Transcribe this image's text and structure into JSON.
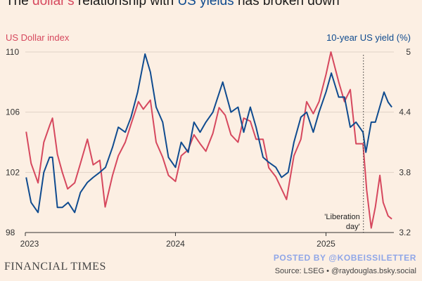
{
  "title": {
    "prefix": "The ",
    "dollar": "dollar's",
    "middle": " relationship with ",
    "yields": "US yields",
    "suffix": " has broken down"
  },
  "colors": {
    "dollar": "#d6485e",
    "yield": "#0f4b8f",
    "background": "#fcefe3"
  },
  "footer": {
    "publisher": "FINANCIAL TIMES",
    "watermark": "POSTED BY @KOBEISSILETTER",
    "source": "Source: LSEG • @raydouglas.bsky.social"
  },
  "chart_data": {
    "type": "line",
    "title": "",
    "left_axis": {
      "label": "US Dollar index",
      "ticks": [
        98,
        102,
        106,
        110
      ],
      "ylim": [
        98,
        110
      ]
    },
    "right_axis": {
      "label": "10-year US yield (%)",
      "ticks": [
        3.2,
        3.8,
        4.4,
        5
      ],
      "ylim": [
        3.2,
        5.0
      ]
    },
    "x_axis": {
      "ticks": [
        "2023",
        "2024",
        "2025"
      ],
      "xlim": [
        "2023-01-01",
        "2025-06-15"
      ]
    },
    "grid": "horizontal",
    "annotations": [
      {
        "x": "2025-04-02",
        "label": "'Liberation\nday'",
        "style": "dotted-vertical"
      }
    ],
    "series": [
      {
        "name": "US Dollar index",
        "axis": "left",
        "color": "#d6485e",
        "x": [
          "2023-01-03",
          "2023-01-15",
          "2023-02-01",
          "2023-02-15",
          "2023-03-01",
          "2023-03-08",
          "2023-03-20",
          "2023-04-01",
          "2023-04-14",
          "2023-05-01",
          "2023-05-15",
          "2023-06-01",
          "2023-06-15",
          "2023-07-01",
          "2023-07-14",
          "2023-08-01",
          "2023-08-15",
          "2023-09-01",
          "2023-09-15",
          "2023-10-03",
          "2023-10-15",
          "2023-11-01",
          "2023-11-15",
          "2023-12-01",
          "2023-12-15",
          "2024-01-01",
          "2024-01-15",
          "2024-02-01",
          "2024-02-15",
          "2024-03-01",
          "2024-03-15",
          "2024-04-01",
          "2024-04-16",
          "2024-05-01",
          "2024-05-15",
          "2024-06-01",
          "2024-06-15",
          "2024-07-01",
          "2024-07-15",
          "2024-08-01",
          "2024-08-15",
          "2024-09-01",
          "2024-09-27",
          "2024-10-15",
          "2024-11-01",
          "2024-11-15",
          "2024-12-01",
          "2024-12-15",
          "2025-01-01",
          "2025-01-13",
          "2025-02-01",
          "2025-02-15",
          "2025-03-01",
          "2025-03-15",
          "2025-04-01",
          "2025-04-10",
          "2025-04-21",
          "2025-05-01",
          "2025-05-12",
          "2025-05-20",
          "2025-06-01",
          "2025-06-10"
        ],
        "values": [
          104.7,
          102.6,
          101.3,
          104.0,
          105.1,
          105.6,
          103.2,
          102.0,
          100.9,
          101.3,
          102.6,
          104.2,
          102.5,
          102.8,
          99.7,
          101.8,
          103.1,
          104.0,
          105.2,
          106.7,
          106.2,
          106.8,
          104.0,
          103.0,
          101.8,
          101.4,
          103.1,
          103.5,
          104.5,
          103.9,
          103.4,
          104.6,
          106.3,
          105.8,
          104.5,
          104.0,
          105.6,
          105.4,
          104.2,
          104.2,
          102.3,
          101.7,
          100.2,
          103.1,
          104.2,
          106.7,
          105.9,
          106.7,
          108.5,
          110.0,
          108.0,
          106.7,
          107.5,
          103.9,
          103.9,
          100.8,
          98.3,
          99.7,
          101.8,
          100.0,
          99.1,
          98.9
        ]
      },
      {
        "name": "10-year US yield (%)",
        "axis": "right",
        "color": "#0f4b8f",
        "x": [
          "2023-01-03",
          "2023-01-15",
          "2023-02-01",
          "2023-02-15",
          "2023-03-01",
          "2023-03-08",
          "2023-03-20",
          "2023-04-01",
          "2023-04-15",
          "2023-05-01",
          "2023-05-15",
          "2023-06-01",
          "2023-06-15",
          "2023-07-01",
          "2023-07-15",
          "2023-08-01",
          "2023-08-15",
          "2023-09-01",
          "2023-09-15",
          "2023-10-01",
          "2023-10-19",
          "2023-11-01",
          "2023-11-15",
          "2023-12-01",
          "2023-12-15",
          "2024-01-01",
          "2024-01-15",
          "2024-02-01",
          "2024-02-15",
          "2024-03-01",
          "2024-03-15",
          "2024-04-01",
          "2024-04-25",
          "2024-05-15",
          "2024-06-01",
          "2024-06-15",
          "2024-07-01",
          "2024-07-15",
          "2024-08-01",
          "2024-08-15",
          "2024-09-01",
          "2024-09-15",
          "2024-10-01",
          "2024-10-15",
          "2024-11-01",
          "2024-11-15",
          "2024-12-01",
          "2024-12-15",
          "2025-01-01",
          "2025-01-14",
          "2025-02-01",
          "2025-02-15",
          "2025-03-01",
          "2025-03-15",
          "2025-04-01",
          "2025-04-08",
          "2025-04-21",
          "2025-05-01",
          "2025-05-15",
          "2025-05-22",
          "2025-06-01",
          "2025-06-10"
        ],
        "values": [
          3.75,
          3.5,
          3.4,
          3.8,
          3.95,
          3.95,
          3.45,
          3.45,
          3.5,
          3.4,
          3.6,
          3.7,
          3.75,
          3.8,
          3.85,
          4.05,
          4.25,
          4.2,
          4.35,
          4.6,
          4.98,
          4.8,
          4.45,
          4.3,
          3.95,
          3.85,
          4.1,
          4.0,
          4.3,
          4.2,
          4.3,
          4.4,
          4.7,
          4.4,
          4.45,
          4.2,
          4.45,
          4.25,
          3.95,
          3.9,
          3.85,
          3.75,
          3.8,
          4.1,
          4.35,
          4.4,
          4.2,
          4.4,
          4.6,
          4.79,
          4.55,
          4.55,
          4.25,
          4.3,
          4.2,
          4.0,
          4.3,
          4.3,
          4.5,
          4.6,
          4.5,
          4.45
        ]
      }
    ]
  }
}
